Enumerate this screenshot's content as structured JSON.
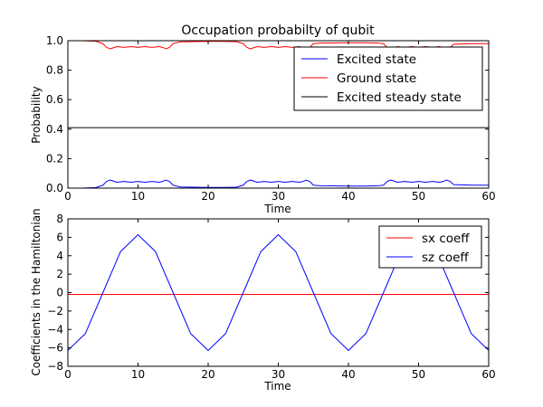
{
  "chart_data": [
    {
      "type": "line",
      "title": "Occupation probabilty of qubit",
      "xlabel": "Time",
      "ylabel": "Probability",
      "xlim": [
        0,
        60
      ],
      "ylim": [
        0,
        1.0
      ],
      "x_ticks": [
        "0",
        "10",
        "20",
        "30",
        "40",
        "50",
        "60"
      ],
      "y_ticks": [
        "0.0",
        "0.2",
        "0.4",
        "0.6",
        "0.8",
        "1.0"
      ],
      "grid": false,
      "legend_position": "upper-right",
      "series": [
        {
          "name": "Excited state",
          "color": "#0000ff",
          "x": [
            0,
            2,
            4,
            5,
            5.5,
            6,
            7,
            8,
            9,
            10,
            11,
            12,
            13,
            13.5,
            14,
            14.5,
            15,
            16,
            18,
            20,
            22,
            24,
            25,
            25.5,
            26,
            27,
            28,
            29,
            30,
            31,
            32,
            33,
            33.5,
            34,
            34.5,
            35,
            36,
            38,
            40,
            42,
            44,
            45,
            45.5,
            46,
            47,
            48,
            49,
            50,
            51,
            52,
            53,
            53.5,
            54,
            54.5,
            55,
            56,
            58,
            60
          ],
          "y": [
            0.0,
            0.0,
            0.004,
            0.02,
            0.045,
            0.055,
            0.04,
            0.045,
            0.04,
            0.045,
            0.04,
            0.045,
            0.04,
            0.045,
            0.055,
            0.045,
            0.02,
            0.008,
            0.006,
            0.005,
            0.005,
            0.006,
            0.02,
            0.045,
            0.055,
            0.04,
            0.045,
            0.04,
            0.045,
            0.04,
            0.045,
            0.04,
            0.045,
            0.055,
            0.045,
            0.02,
            0.016,
            0.015,
            0.014,
            0.014,
            0.015,
            0.02,
            0.045,
            0.055,
            0.04,
            0.045,
            0.04,
            0.045,
            0.04,
            0.045,
            0.04,
            0.045,
            0.055,
            0.045,
            0.024,
            0.022,
            0.02,
            0.02
          ]
        },
        {
          "name": "Ground state",
          "color": "#ff0000",
          "x": [
            0,
            2,
            4,
            5,
            5.5,
            6,
            7,
            8,
            9,
            10,
            11,
            12,
            13,
            13.5,
            14,
            14.5,
            15,
            16,
            18,
            20,
            22,
            24,
            25,
            25.5,
            26,
            27,
            28,
            29,
            30,
            31,
            32,
            33,
            33.5,
            34,
            34.5,
            35,
            36,
            38,
            40,
            42,
            44,
            45,
            45.5,
            46,
            47,
            48,
            49,
            50,
            51,
            52,
            53,
            53.5,
            54,
            54.5,
            55,
            56,
            58,
            60
          ],
          "y": [
            1.0,
            1.0,
            0.996,
            0.98,
            0.955,
            0.945,
            0.96,
            0.955,
            0.96,
            0.955,
            0.96,
            0.955,
            0.96,
            0.955,
            0.945,
            0.955,
            0.98,
            0.992,
            0.994,
            0.995,
            0.995,
            0.994,
            0.98,
            0.955,
            0.945,
            0.96,
            0.955,
            0.96,
            0.955,
            0.96,
            0.955,
            0.96,
            0.955,
            0.945,
            0.955,
            0.98,
            0.984,
            0.985,
            0.986,
            0.986,
            0.985,
            0.98,
            0.955,
            0.945,
            0.96,
            0.955,
            0.96,
            0.955,
            0.96,
            0.955,
            0.96,
            0.955,
            0.945,
            0.955,
            0.976,
            0.978,
            0.98,
            0.98
          ]
        },
        {
          "name": "Excited steady state",
          "color": "#000000",
          "x": [
            0,
            60
          ],
          "y": [
            0.41,
            0.41
          ]
        }
      ]
    },
    {
      "type": "line",
      "title": "",
      "xlabel": "Time",
      "ylabel": "Coefficients in the Hamiltonian",
      "xlim": [
        0,
        60
      ],
      "ylim": [
        -8,
        8
      ],
      "x_ticks": [
        "0",
        "10",
        "20",
        "30",
        "40",
        "50",
        "60"
      ],
      "y_ticks": [
        "−8",
        "−6",
        "−4",
        "−2",
        "0",
        "2",
        "4",
        "6",
        "8"
      ],
      "grid": false,
      "legend_position": "upper-right",
      "series": [
        {
          "name": "sx coeff",
          "color": "#ff0000",
          "x": [
            0,
            60
          ],
          "y": [
            -0.2,
            -0.2
          ]
        },
        {
          "name": "sz coeff",
          "color": "#0000ff",
          "x": [
            0,
            2.5,
            5,
            7.5,
            10,
            12.5,
            15,
            17.5,
            20,
            22.5,
            25,
            27.5,
            30,
            32.5,
            35,
            37.5,
            40,
            42.5,
            45,
            47.5,
            50,
            52.5,
            55,
            57.5,
            60
          ],
          "y": [
            -6.28,
            -4.44,
            0,
            4.44,
            6.28,
            4.44,
            0,
            -4.44,
            -6.28,
            -4.44,
            0,
            4.44,
            6.28,
            4.44,
            0,
            -4.44,
            -6.28,
            -4.44,
            0,
            4.44,
            6.28,
            4.44,
            0,
            -4.44,
            -6.28
          ]
        }
      ]
    }
  ]
}
